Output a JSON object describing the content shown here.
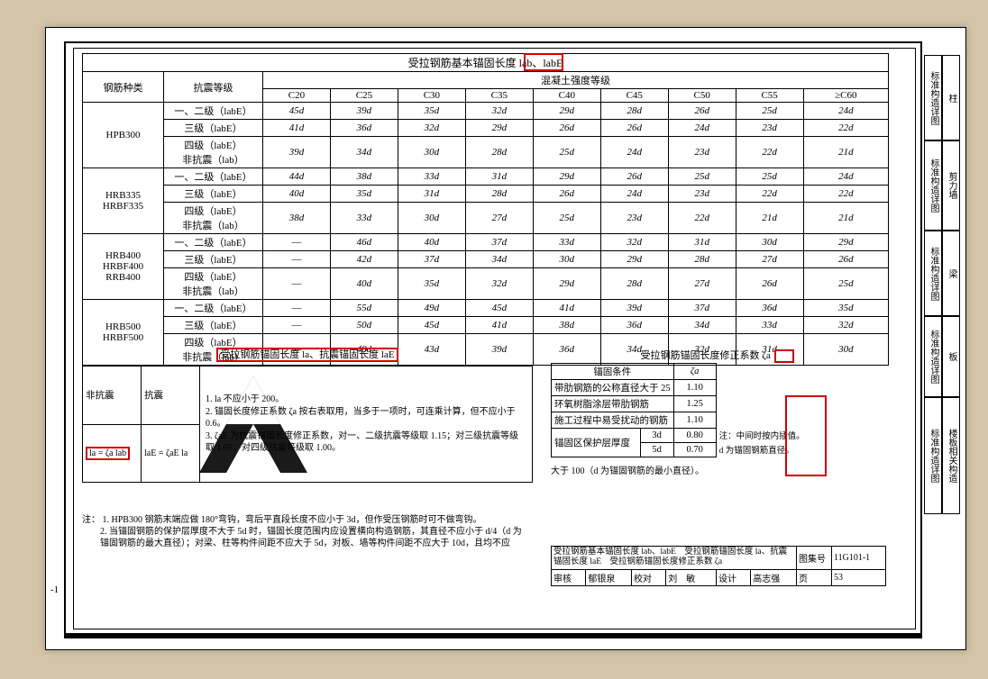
{
  "colors": {
    "page_bg": "#d4c5a9",
    "paper": "#ffffff",
    "ink": "#000000",
    "highlight": "#d00000"
  },
  "main_table": {
    "title": "受拉钢筋基本锚固长度 lab、labE",
    "col1_header": "钢筋种类",
    "col2_header": "抗震等级",
    "group_header": "混凝土强度等级",
    "grades": [
      "C20",
      "C25",
      "C30",
      "C35",
      "C40",
      "C45",
      "C50",
      "C55",
      "≥C60"
    ],
    "row_labels": {
      "l12": "一、二级（labE）",
      "l3": "三级（labE）",
      "l4": "四级（labE）\n非抗震（lab）"
    },
    "families": [
      {
        "name": "HPB300",
        "rows": [
          [
            "45d",
            "39d",
            "35d",
            "32d",
            "29d",
            "28d",
            "26d",
            "25d",
            "24d"
          ],
          [
            "41d",
            "36d",
            "32d",
            "29d",
            "26d",
            "26d",
            "24d",
            "23d",
            "22d"
          ],
          [
            "39d",
            "34d",
            "30d",
            "28d",
            "25d",
            "24d",
            "23d",
            "22d",
            "21d"
          ]
        ]
      },
      {
        "name": "HRB335\nHRBF335",
        "rows": [
          [
            "44d",
            "38d",
            "33d",
            "31d",
            "29d",
            "26d",
            "25d",
            "25d",
            "24d"
          ],
          [
            "40d",
            "35d",
            "31d",
            "28d",
            "26d",
            "24d",
            "23d",
            "22d",
            "22d"
          ],
          [
            "38d",
            "33d",
            "30d",
            "27d",
            "25d",
            "23d",
            "22d",
            "21d",
            "21d"
          ]
        ]
      },
      {
        "name": "HRB400\nHRBF400\nRRB400",
        "rows": [
          [
            "—",
            "46d",
            "40d",
            "37d",
            "33d",
            "32d",
            "31d",
            "30d",
            "29d"
          ],
          [
            "—",
            "42d",
            "37d",
            "34d",
            "30d",
            "29d",
            "28d",
            "27d",
            "26d"
          ],
          [
            "—",
            "40d",
            "35d",
            "32d",
            "29d",
            "28d",
            "27d",
            "26d",
            "25d"
          ]
        ]
      },
      {
        "name": "HRB500\nHRBF500",
        "rows": [
          [
            "—",
            "55d",
            "49d",
            "45d",
            "41d",
            "39d",
            "37d",
            "36d",
            "35d"
          ],
          [
            "—",
            "50d",
            "45d",
            "41d",
            "38d",
            "36d",
            "34d",
            "33d",
            "32d"
          ],
          [
            "—",
            "48d",
            "43d",
            "39d",
            "36d",
            "34d",
            "32d",
            "31d",
            "30d"
          ]
        ]
      }
    ]
  },
  "formula_section": {
    "title_left": "受拉钢筋锚固长度 la、抗震锚固长度 laE",
    "col_nonseismic": "非抗震",
    "col_seismic": "抗震",
    "formula1": "la = ζa lab",
    "formula2": "laE = ζaE la",
    "cond1": "la 不应小于 200。",
    "cond2": "锚固长度修正系数 ζa 按右表取用，当多于一项时，可连乘计算，但不应小于 0.6。",
    "cond3": "ζaE 为抗震锚固长度修正系数，对一、二级抗震等级取 1.15；对三级抗震等级取 1.05；对四级抗震等级取 1.00。"
  },
  "zeta_table": {
    "title": "受拉钢筋锚固长度修正系数 ζa",
    "col1": "锚固条件",
    "col2": "ζa",
    "rows": [
      {
        "cond": "带肋钢筋的公称直径大于 25",
        "val": "1.10",
        "note": ""
      },
      {
        "cond": "环氧树脂涂层带肋钢筋",
        "val": "1.25",
        "note": ""
      },
      {
        "cond": "施工过程中易受扰动的钢筋",
        "val": "1.10",
        "note": ""
      }
    ],
    "cover_label": "锚固区保护层厚度",
    "cover_rows": [
      {
        "d": "3d",
        "val": "0.80"
      },
      {
        "d": "5d",
        "val": "0.70"
      }
    ],
    "note1": "注：中间时按内插值。",
    "note2": "d 为锚固钢筋直径。",
    "below": "大于 100（d 为锚固钢筋的最小直径）。"
  },
  "notes": {
    "label": "注：",
    "n1": "1. HPB300 钢筋末端应做 180°弯钩，弯后平直段长度不应小于 3d，但作受压钢筋时可不做弯钩。",
    "n2": "2. 当锚固钢筋的保护层厚度不大于 5d 时，锚固长度范围内应设置横向构造钢筋，其直径不应小于 d/4（d 为锚固钢筋的最大直径）；对梁、柱等构件间距不应大于 5d，对板、墙等构件间距不应大于 10d，且均不应"
  },
  "footer": {
    "line1": "受拉钢筋基本锚固长度 lab、labE　受拉钢筋锚固长度 la、抗震锚固长度 laE　受拉钢筋锚固长度修正系数 ζa",
    "atlas_label": "图集号",
    "atlas": "11G101-1",
    "review_label": "审核",
    "review": "郁银泉",
    "check_label": "校对",
    "check": "刘　敏",
    "design_label": "设计",
    "design": "高志强",
    "page_label": "页",
    "page": "53"
  },
  "side_tabs": [
    {
      "a": "标准构造详图",
      "b": "柱"
    },
    {
      "a": "标准构造详图",
      "b": "剪力墙"
    },
    {
      "a": "标准构造详图",
      "b": "梁"
    },
    {
      "a": "标准构造详图",
      "b": "板"
    },
    {
      "a": "标准构造详图",
      "b": "楼板相关构造"
    }
  ],
  "page_margin": "-1"
}
